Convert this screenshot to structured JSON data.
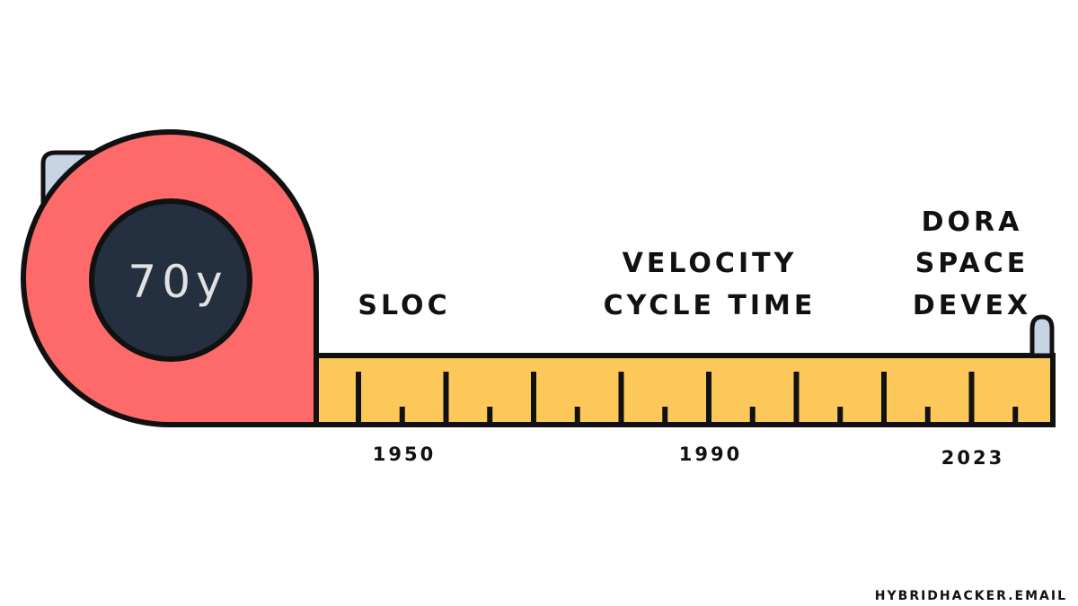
{
  "colors": {
    "case": "#fe6a6a",
    "dial": "#24303f",
    "dial_text": "#e2e2e4",
    "tape": "#fcc85a",
    "clip": "#c7d4e3",
    "ink": "#111111",
    "background": "#ffffff"
  },
  "counter": {
    "label": "70y"
  },
  "eras": [
    {
      "lines": [
        "SLOC"
      ],
      "year": "1950"
    },
    {
      "lines": [
        "VELOCITY",
        "CYCLE TIME"
      ],
      "year": "1990"
    },
    {
      "lines": [
        "DORA",
        "SPACE",
        "DEVEX"
      ],
      "year": "2023"
    }
  ],
  "credit": "HYBRIDHACKER.EMAIL"
}
